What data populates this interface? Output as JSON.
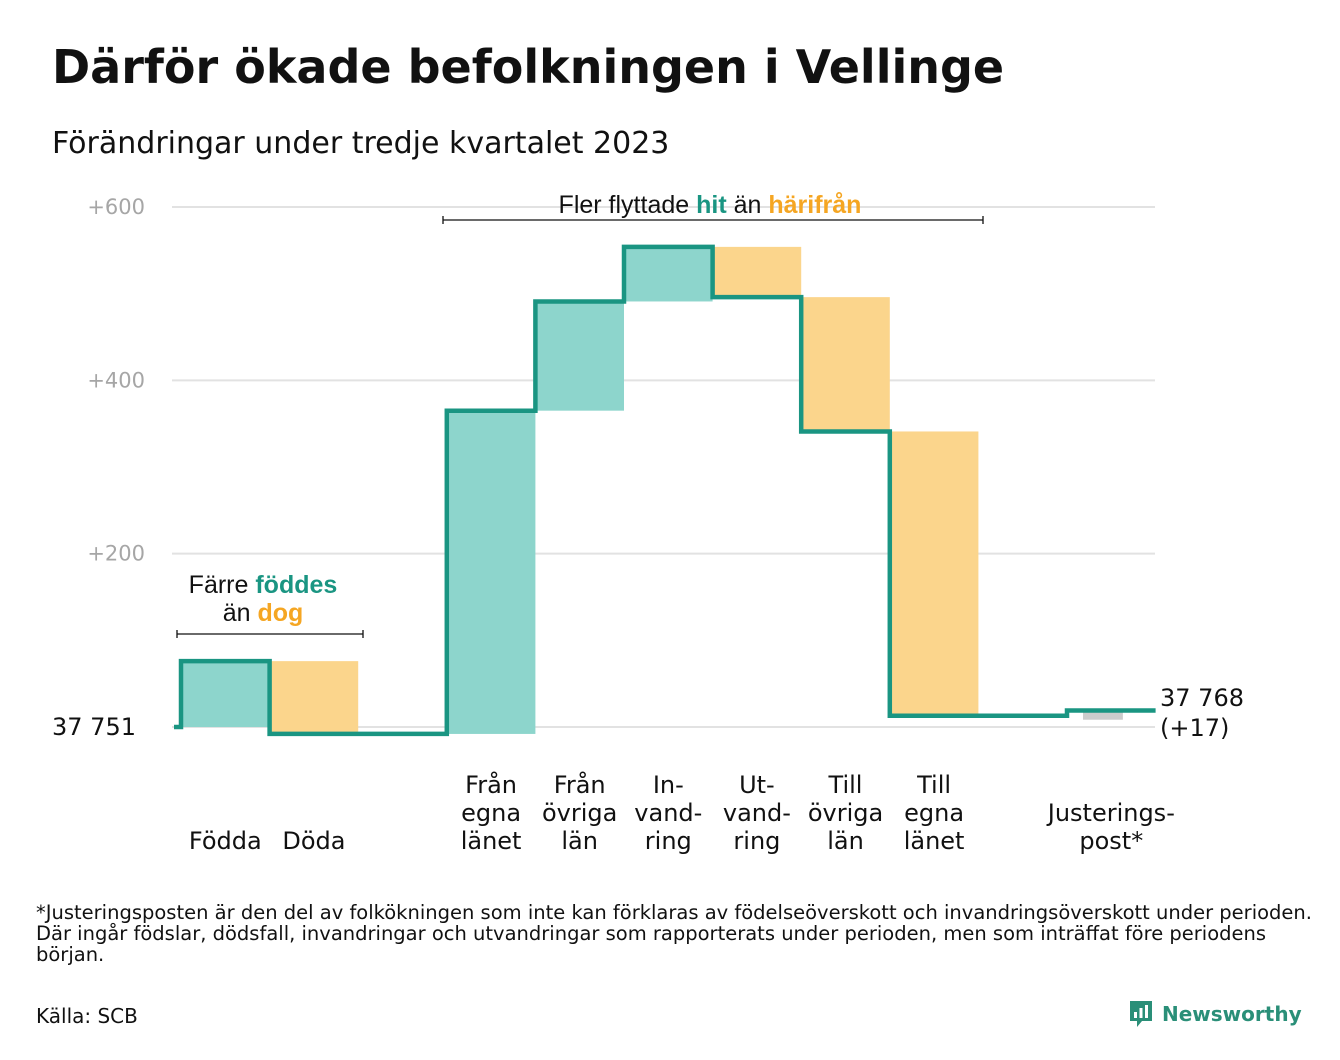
{
  "title": "Därför ökade befolkningen i Vellinge",
  "subtitle": "Förändringar under tredje kvartalet 2023",
  "chart_data": {
    "type": "waterfall",
    "start": 37751,
    "start_label": "37  751",
    "end_label": [
      "37 768",
      "(+17)"
    ],
    "y_axis": {
      "min": -10,
      "max": 600,
      "ticks": [
        200,
        400,
        600
      ],
      "tick_labels": [
        "+200",
        "+400",
        "+600"
      ]
    },
    "grid": true,
    "steps": [
      {
        "category": [
          "Födda"
        ],
        "value": 76,
        "kind": "in"
      },
      {
        "category": [
          "Döda"
        ],
        "value": -84,
        "kind": "out"
      },
      {
        "category": [],
        "value": 0,
        "kind": "gap"
      },
      {
        "category": [
          "Från",
          "egna",
          "länet"
        ],
        "value": 373,
        "kind": "in"
      },
      {
        "category": [
          "Från",
          "övriga",
          "län"
        ],
        "value": 126,
        "kind": "in"
      },
      {
        "category": [
          "In-",
          "vand-",
          "ring"
        ],
        "value": 63,
        "kind": "in"
      },
      {
        "category": [
          "Ut-",
          "vand-",
          "ring"
        ],
        "value": -58,
        "kind": "out"
      },
      {
        "category": [
          "Till",
          "övriga",
          "län"
        ],
        "value": -155,
        "kind": "out"
      },
      {
        "category": [
          "Till",
          "egna",
          "länet"
        ],
        "value": -328,
        "kind": "out"
      },
      {
        "category": [],
        "value": 0,
        "kind": "gap"
      },
      {
        "category": [
          "Justerings-",
          "post*"
        ],
        "value": 6,
        "kind": "adjust"
      }
    ],
    "annotations": [
      {
        "id": "birth",
        "lines": [
          [
            {
              "text": "Färre ",
              "style": "plain"
            },
            {
              "text": "föddes",
              "style": "in"
            }
          ],
          [
            {
              "text": "än ",
              "style": "plain"
            },
            {
              "text": "dog",
              "style": "out"
            }
          ]
        ]
      },
      {
        "id": "move",
        "lines": [
          [
            {
              "text": "Fler flyttade ",
              "style": "plain"
            },
            {
              "text": "hit",
              "style": "in"
            },
            {
              "text": " än ",
              "style": "plain"
            },
            {
              "text": "härifrån",
              "style": "out"
            }
          ]
        ]
      }
    ],
    "colors": {
      "line": "#1a9582",
      "in": "#8dd5cc",
      "out": "#fbd58c",
      "adjust": "#cccccc",
      "in_text": "#1a9582",
      "out_text": "#f5a623",
      "grid": "#e2e2e2",
      "tick": "#a6a6a6"
    }
  },
  "footnote": "*Justeringsposten är den del av folkökningen som inte kan förklaras av födelseöverskott och invandringsöverskott under perioden. Där ingår födslar, dödsfall, invandringar och utvandringar som rapporterats under perioden, men som inträffat före periodens början.",
  "source": "Källa: SCB",
  "logo": {
    "text": "Newsworthy",
    "icon": "bar-chart-logo-icon"
  }
}
